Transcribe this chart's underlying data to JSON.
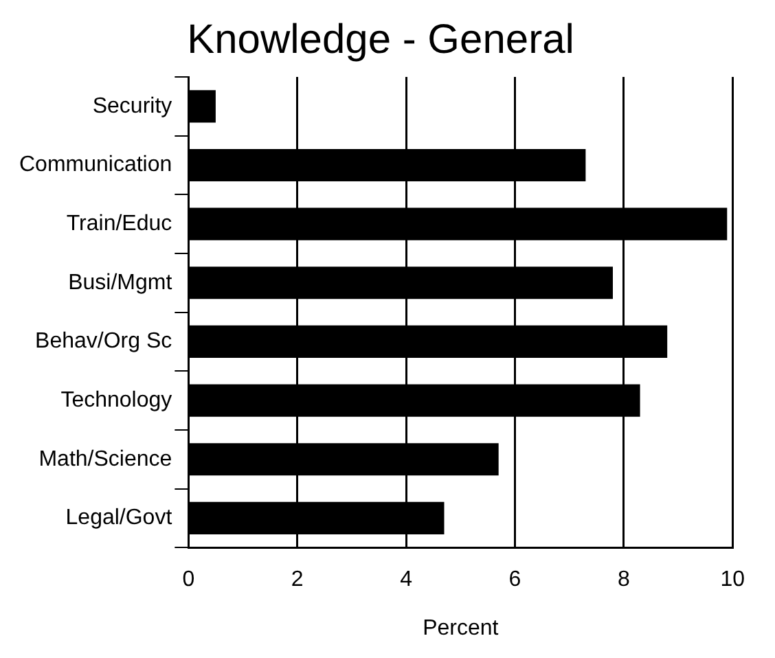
{
  "chart_data": {
    "type": "bar",
    "orientation": "horizontal",
    "title": "Knowledge - General",
    "xlabel": "Percent",
    "categories": [
      "Security",
      "Communication",
      "Train/Educ",
      "Busi/Mgmt",
      "Behav/Org Sc",
      "Technology",
      "Math/Science",
      "Legal/Govt"
    ],
    "values": [
      0.5,
      7.3,
      9.9,
      7.8,
      8.8,
      8.3,
      5.7,
      4.7
    ],
    "color": "#000000",
    "xlim": [
      0,
      10
    ],
    "xticks": [
      0,
      2,
      4,
      6,
      8,
      10
    ],
    "grid": "x"
  }
}
